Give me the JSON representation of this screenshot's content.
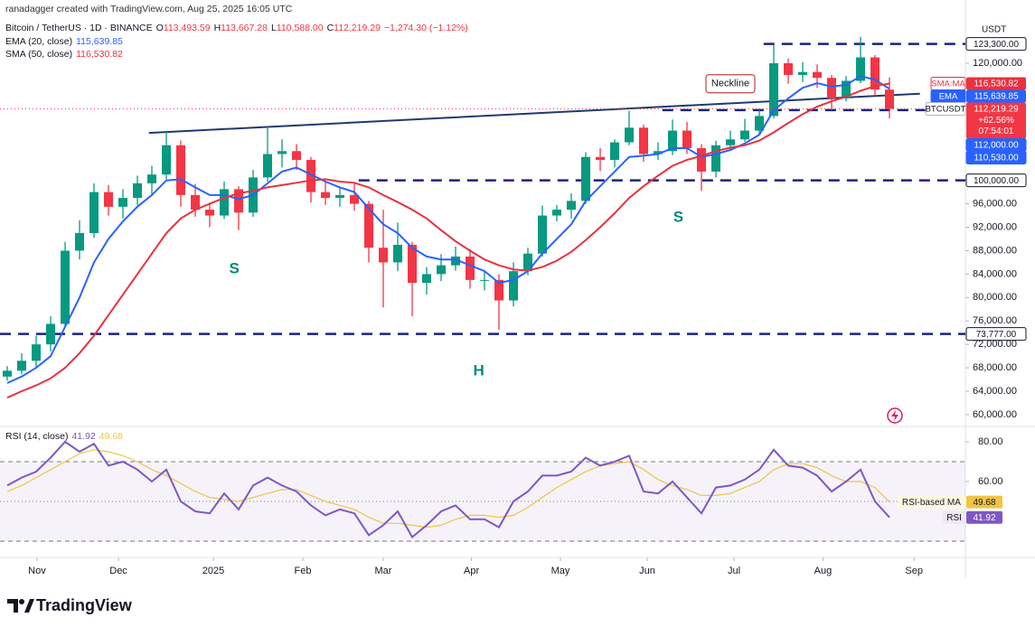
{
  "header": {
    "attribution": "ranadagger created with TradingView.com, Aug 25, 2025 16:05 UTC",
    "symbol": "Bitcoin / TetherUS · 1D · BINANCE",
    "ohlc": [
      [
        "O",
        "113,493.59"
      ],
      [
        "H",
        "113,667.28"
      ],
      [
        "L",
        "110,588.00"
      ],
      [
        "C",
        "112,219.29"
      ]
    ],
    "change": "−1,274.30 (−1.12%)"
  },
  "chart_data": [
    {
      "type": "candlestick",
      "axis_unit": "USDT",
      "up_color": "#089981",
      "down_color": "#f23645",
      "xlim": [
        -0.5,
        66.25
      ],
      "ylim": [
        58300,
        125400
      ],
      "yticks": [
        {
          "value": 60000,
          "label": "60,000.00"
        },
        {
          "value": 64000,
          "label": "64,000.00"
        },
        {
          "value": 68000,
          "label": "68,000.00"
        },
        {
          "value": 72000,
          "label": "72,000.00"
        },
        {
          "value": 76000,
          "label": "76,000.00"
        },
        {
          "value": 80000,
          "label": "80,000.00"
        },
        {
          "value": 84000,
          "label": "84,000.00"
        },
        {
          "value": 88000,
          "label": "88,000.00"
        },
        {
          "value": 92000,
          "label": "92,000.00"
        },
        {
          "value": 96000,
          "label": "96,000.00"
        },
        {
          "value": 120000,
          "label": "120,000.00"
        }
      ],
      "open": [
        66500,
        67500,
        69200,
        72000,
        75500,
        88000,
        91000,
        98000,
        95500,
        97000,
        99500,
        101000,
        106000,
        97500,
        95000,
        94000,
        98500,
        94500,
        100500,
        104500,
        105000,
        103500,
        98000,
        97000,
        97500,
        96000,
        88500,
        86000,
        89000,
        82500,
        84000,
        85500,
        87000,
        83000,
        83000,
        79500,
        84500,
        87500,
        94000,
        95000,
        96500,
        104000,
        103500,
        106500,
        109000,
        104500,
        105000,
        108500,
        105500,
        101500,
        106000,
        107000,
        108500,
        111000,
        120000,
        118000,
        118500,
        117500,
        114000,
        117000,
        121000,
        115500
      ],
      "high": [
        68300,
        70500,
        73500,
        76800,
        89500,
        93200,
        99500,
        99200,
        98500,
        100800,
        102500,
        108300,
        106800,
        99400,
        96200,
        99800,
        99000,
        101800,
        109200,
        107000,
        106200,
        104000,
        99800,
        98800,
        99400,
        96500,
        95000,
        92800,
        89500,
        85200,
        87400,
        88700,
        88300,
        84700,
        84000,
        86000,
        88500,
        95700,
        95800,
        97800,
        104800,
        105500,
        107000,
        111900,
        109500,
        106500,
        110400,
        110000,
        106200,
        106800,
        108500,
        110500,
        112000,
        123200,
        120800,
        120200,
        119800,
        118000,
        117800,
        124500,
        121400,
        117600
      ],
      "low": [
        65800,
        66900,
        68000,
        70800,
        74800,
        86500,
        90200,
        94000,
        93500,
        95800,
        97500,
        100200,
        95500,
        93800,
        92000,
        93400,
        91500,
        93800,
        99800,
        102200,
        101800,
        96200,
        95800,
        95500,
        94800,
        86000,
        78300,
        84500,
        76800,
        80500,
        82800,
        84600,
        81500,
        81200,
        74500,
        78500,
        83800,
        87000,
        93000,
        93500,
        96000,
        101600,
        102200,
        106000,
        103200,
        103500,
        104300,
        104500,
        98200,
        100500,
        105300,
        106600,
        107800,
        110600,
        116500,
        116800,
        115800,
        112000,
        113500,
        116600,
        114600,
        110600
      ],
      "close": [
        67500,
        69200,
        72000,
        75500,
        88000,
        91000,
        98000,
        95500,
        97000,
        99500,
        101000,
        106000,
        97500,
        95000,
        94000,
        98500,
        94500,
        100500,
        104500,
        105000,
        103500,
        98000,
        97000,
        97500,
        96000,
        88500,
        86000,
        89000,
        82500,
        84000,
        85500,
        87000,
        83000,
        83000,
        79500,
        84500,
        87500,
        94000,
        95000,
        96500,
        104000,
        103500,
        106500,
        109000,
        104500,
        105000,
        108500,
        105500,
        101500,
        106000,
        107000,
        108500,
        111000,
        120000,
        118000,
        118500,
        117500,
        114000,
        117000,
        121000,
        115500,
        112219.29
      ],
      "close_tag": {
        "name": "BTCUSDT",
        "label": "112,219.29",
        "change": "+62.56%",
        "countdown": "07:54:01",
        "color": "#f23645"
      },
      "series": [
        {
          "name": "EMA (20, close)",
          "tag": "EMA",
          "last_label": "115,639.85",
          "color": "#2962ff",
          "values": [
            65400,
            66500,
            68000,
            70000,
            75000,
            80000,
            86000,
            90000,
            93000,
            95500,
            97500,
            100000,
            100200,
            98800,
            97500,
            97500,
            96800,
            97500,
            99500,
            101500,
            102200,
            101000,
            99800,
            98800,
            98000,
            95200,
            92500,
            91000,
            88500,
            87000,
            86500,
            86500,
            85500,
            84500,
            82500,
            83000,
            84500,
            87500,
            90000,
            92500,
            96500,
            99000,
            101500,
            104000,
            104200,
            104500,
            105500,
            105500,
            104000,
            104500,
            105200,
            106300,
            107800,
            112000,
            114000,
            115800,
            116600,
            116000,
            116300,
            117800,
            117200,
            115639.85
          ]
        },
        {
          "name": "SMA (50, close)",
          "tag": "SMA:MA",
          "last_label": "116,530.82",
          "color": "#e8323f",
          "values": [
            62900,
            64000,
            65000,
            66200,
            68000,
            70500,
            73500,
            77000,
            80500,
            84000,
            87500,
            91000,
            93500,
            95000,
            96000,
            97000,
            97800,
            98200,
            98800,
            99200,
            99600,
            100000,
            100200,
            99800,
            99600,
            98800,
            97500,
            96300,
            95000,
            93500,
            91500,
            89600,
            88000,
            86500,
            85500,
            84800,
            84600,
            85200,
            86300,
            87800,
            89800,
            92000,
            94400,
            97000,
            99000,
            100800,
            102500,
            103500,
            104200,
            105000,
            105600,
            106000,
            106800,
            108200,
            109800,
            111300,
            112600,
            113500,
            114300,
            115300,
            116100,
            116530.82
          ]
        }
      ],
      "levels": [
        {
          "value": 123300,
          "label": "123,300.00",
          "from": 52.3,
          "tag_bg": "#ffffff"
        },
        {
          "value": 112000,
          "label": "112,000.00",
          "from": 45.3,
          "tag_bg": "#2962ff"
        },
        {
          "value": 100000,
          "label": "100,000.00",
          "from": 24.3,
          "tag_bg": "#ffffff"
        },
        {
          "value": 73777,
          "label": "73,777.00",
          "from": -0.5,
          "tag_bg": "#ffffff"
        }
      ],
      "price_tags": [
        {
          "value": 110530,
          "label": "110,530.00",
          "tag_bg": "#2962ff"
        }
      ],
      "neckline": {
        "text": "Neckline",
        "x": [
          9.8,
          63.1
        ],
        "y": [
          108100,
          114800
        ],
        "label_x": 50,
        "label_y": 116500,
        "color": "#1e3a6e"
      },
      "annotations": [
        {
          "text": "S",
          "x": 15.7,
          "y": 84800
        },
        {
          "text": "H",
          "x": 32.6,
          "y": 67400
        },
        {
          "text": "S",
          "x": 46.4,
          "y": 93600
        }
      ],
      "annotation_color": "#00897b"
    },
    {
      "type": "line",
      "title": "RSI (14, close)",
      "xlim": [
        -0.5,
        66.25
      ],
      "ylim": [
        22.7,
        85
      ],
      "yticks": [
        {
          "value": 80,
          "label": "80.00"
        },
        {
          "value": 60,
          "label": "60.00"
        }
      ],
      "bands": [
        70,
        50,
        30
      ],
      "xticks": [
        {
          "value": 2.06,
          "label": "Nov"
        },
        {
          "value": 7.69,
          "label": "Dec"
        },
        {
          "value": 14.25,
          "label": "2025"
        },
        {
          "value": 20.44,
          "label": "Feb"
        },
        {
          "value": 26,
          "label": "Mar"
        },
        {
          "value": 32.1,
          "label": "Apr"
        },
        {
          "value": 38.25,
          "label": "May"
        },
        {
          "value": 44.25,
          "label": "Jun"
        },
        {
          "value": 50.25,
          "label": "Jul"
        },
        {
          "value": 56.4,
          "label": "Aug"
        },
        {
          "value": 62.7,
          "label": "Sep"
        }
      ],
      "series": [
        {
          "name": "RSI",
          "last_label": "41.92",
          "color": "#7e57c2",
          "values": [
            58,
            62,
            65,
            72,
            80,
            75,
            79,
            68,
            70,
            66,
            60,
            66,
            50,
            45,
            44,
            54,
            46,
            58,
            62,
            58,
            55,
            48,
            43,
            46,
            44,
            33,
            38,
            45,
            32,
            38,
            45,
            48,
            41,
            41,
            37,
            50,
            55,
            63,
            63,
            65,
            72,
            68,
            70,
            73,
            55,
            54,
            60,
            52,
            44,
            57,
            58,
            61,
            66,
            76,
            68,
            67,
            63,
            55,
            60,
            66,
            50,
            41.92
          ]
        },
        {
          "name": "RSI-based MA",
          "last_label": "49.68",
          "color": "#f2c443",
          "values": [
            55,
            58,
            62,
            66,
            70,
            74,
            76,
            75,
            73,
            70,
            66,
            63,
            59,
            55,
            52,
            51,
            50,
            52,
            54,
            56,
            56,
            53,
            50,
            48,
            46,
            42,
            39,
            39,
            38,
            37,
            38,
            41,
            43,
            43,
            42,
            43,
            47,
            52,
            57,
            61,
            65,
            68,
            69,
            70,
            66,
            61,
            58,
            56,
            53,
            53,
            54,
            57,
            60,
            66,
            69,
            69,
            67,
            63,
            60,
            60,
            57,
            49.68
          ]
        }
      ]
    }
  ],
  "footer": {
    "brand": "TradingView"
  }
}
